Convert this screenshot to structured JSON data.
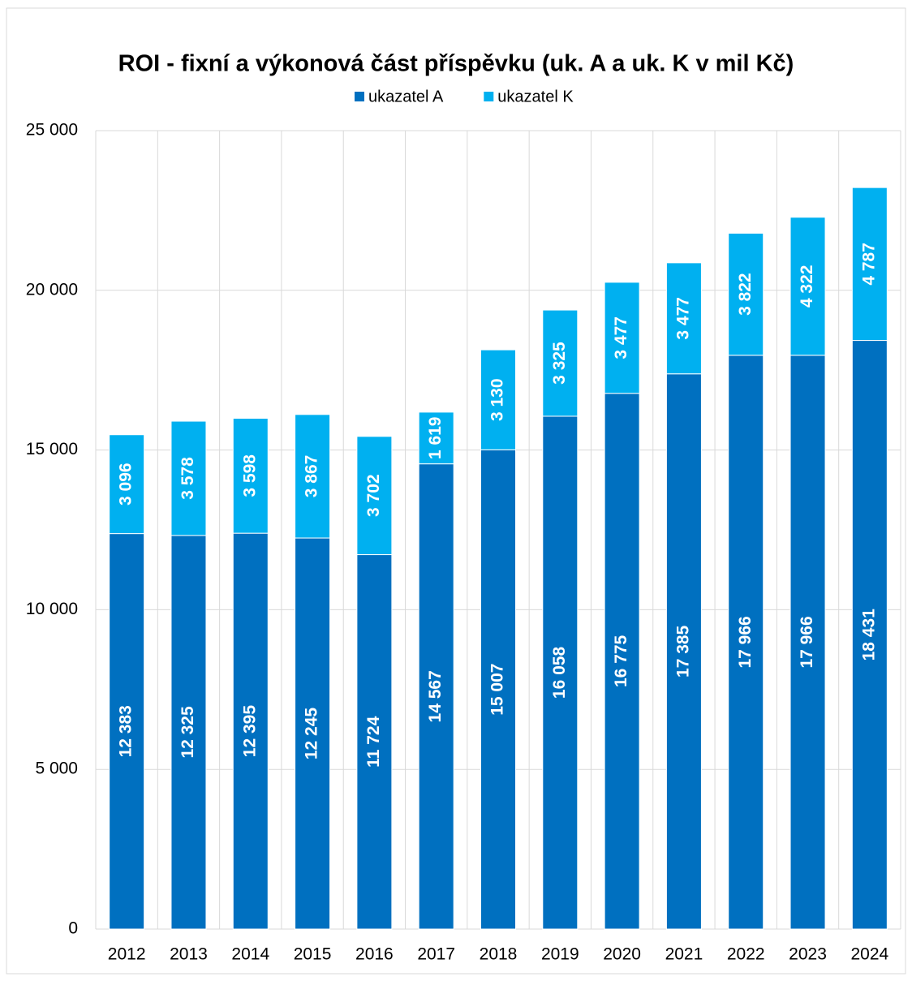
{
  "chart_data": {
    "type": "stacked_bar",
    "title": "ROI - fixní a výkonová část příspěvku (uk. A a uk. K v mil Kč)",
    "categories": [
      "2012",
      "2013",
      "2014",
      "2015",
      "2016",
      "2017",
      "2018",
      "2019",
      "2020",
      "2021",
      "2022",
      "2023",
      "2024"
    ],
    "series": [
      {
        "name": "ukazatel A",
        "color": "#0070c0",
        "values": [
          12383,
          12325,
          12395,
          12245,
          11724,
          14567,
          15007,
          16058,
          16775,
          17385,
          17966,
          17966,
          18431
        ],
        "value_labels": [
          "12 383",
          "12 325",
          "12 395",
          "12 245",
          "11 724",
          "14 567",
          "15 007",
          "16 058",
          "16 775",
          "17 385",
          "17 966",
          "17 966",
          "18 431"
        ]
      },
      {
        "name": "ukazatel K",
        "color": "#00b0f0",
        "values": [
          3096,
          3578,
          3598,
          3867,
          3702,
          1619,
          3130,
          3325,
          3477,
          3477,
          3822,
          4322,
          4787
        ],
        "value_labels": [
          "3 096",
          "3 578",
          "3 598",
          "3 867",
          "3 702",
          "1 619",
          "3 130",
          "3 325",
          "3 477",
          "3 477",
          "3 822",
          "4 322",
          "4 787"
        ]
      }
    ],
    "ylim": [
      0,
      25000
    ],
    "yticks": [
      0,
      {
        "value": 5000,
        "label": "5 000"
      },
      {
        "value": 10000,
        "label": "10 000"
      },
      {
        "value": 15000,
        "label": "15 000"
      },
      {
        "value": 20000,
        "label": "20 000"
      },
      {
        "value": 25000,
        "label": "25 000"
      }
    ],
    "grid": true,
    "legend": "top"
  }
}
